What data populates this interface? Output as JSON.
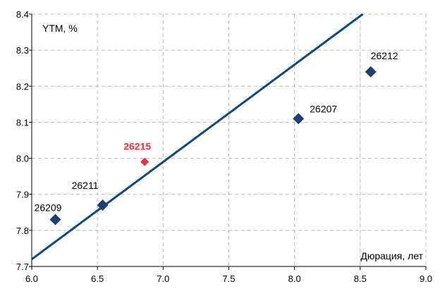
{
  "chart_data": {
    "type": "scatter",
    "title": "",
    "xlabel": "Дюрация, лет",
    "ylabel": "YTM, %",
    "xlim": [
      6.0,
      9.0
    ],
    "ylim": [
      7.7,
      8.4
    ],
    "x_ticks": [
      "6.0",
      "6.5",
      "7.0",
      "7.5",
      "8.0",
      "8.5",
      "9.0"
    ],
    "y_ticks": [
      "7.7",
      "7.8",
      "7.9",
      "8.0",
      "8.1",
      "8.2",
      "8.3",
      "8.4"
    ],
    "grid": true,
    "series": [
      {
        "marker": "diamond",
        "color": "#1f3f73",
        "points": [
          {
            "label": "26209",
            "x": 6.18,
            "y": 7.83
          },
          {
            "label": "26211",
            "x": 6.54,
            "y": 7.87
          },
          {
            "label": "26207",
            "x": 8.03,
            "y": 8.11
          },
          {
            "label": "26212",
            "x": 8.58,
            "y": 8.24
          }
        ]
      },
      {
        "marker": "diamond",
        "color": "#e8323c",
        "points": [
          {
            "label": "26215",
            "x": 6.86,
            "y": 7.99
          }
        ]
      }
    ],
    "trendline": {
      "color": "#0d4a7a",
      "x": [
        6.0,
        8.52
      ],
      "y": [
        7.72,
        8.4
      ]
    }
  }
}
